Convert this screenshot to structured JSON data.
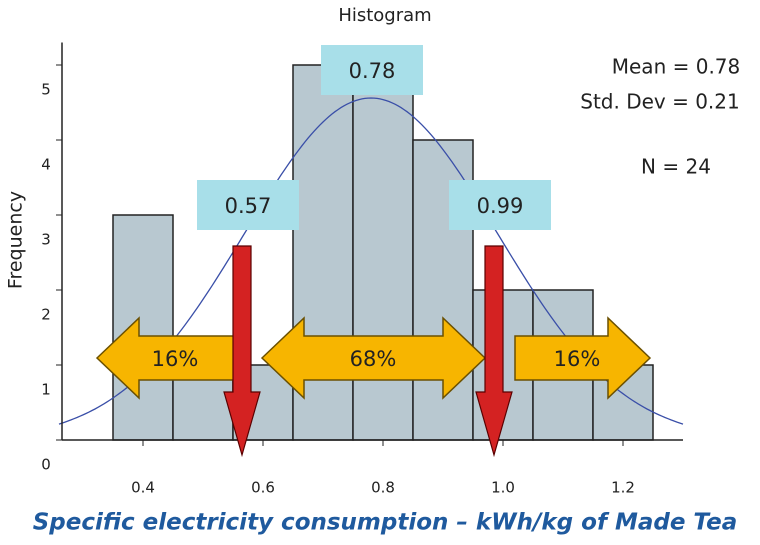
{
  "chart_data": {
    "type": "histogram",
    "title": "Histogram",
    "x_label": "Specific electricity consumption – kWh/kg of Made Tea",
    "y_label": "Frequency",
    "bins": [
      0.35,
      0.45,
      0.55,
      0.65,
      0.75,
      0.85,
      0.95,
      1.05,
      1.15,
      1.25
    ],
    "values": [
      3,
      1,
      1,
      5,
      5,
      4,
      2,
      2,
      1
    ],
    "color": "#b8c8d0",
    "xlim": [
      0.26,
      1.3
    ],
    "ylim": [
      0,
      5.3
    ],
    "xticks": [
      0.4,
      0.6,
      0.8,
      {
        "value": 1,
        "label": "1.0"
      },
      1.2
    ],
    "yticks": [
      0,
      1,
      2,
      3,
      4,
      5
    ],
    "normal_curve": {
      "mean": 0.78,
      "sd": 0.21,
      "n": 24,
      "color": "#3a4fa8"
    },
    "stats": [
      "Mean = 0.78",
      "Std. Dev = 0.21",
      "N = 24"
    ],
    "callouts": [
      {
        "value": 0.78,
        "label": "0.78"
      },
      {
        "value": 0.57,
        "label": "0.57"
      },
      {
        "value": 0.99,
        "label": "0.99"
      }
    ],
    "percent_arrows": [
      "16%",
      "68%",
      "16%"
    ]
  }
}
